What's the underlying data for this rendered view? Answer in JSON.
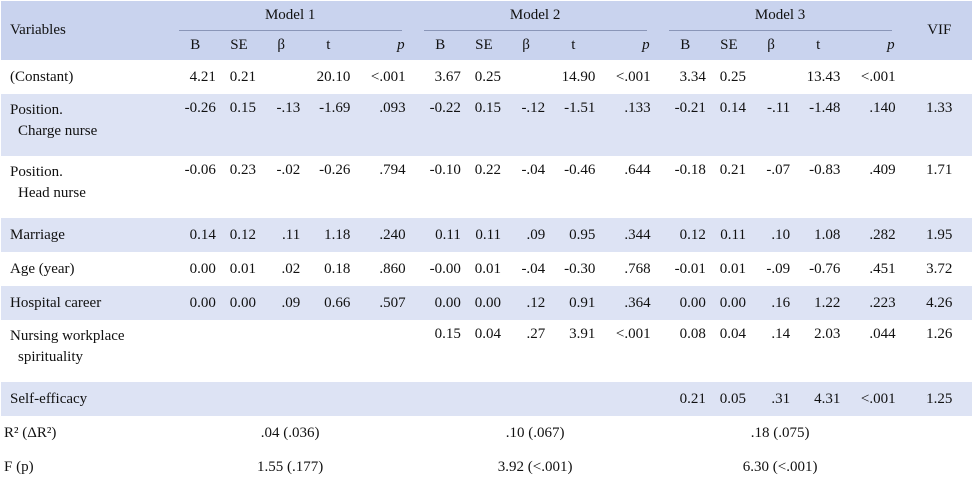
{
  "header": {
    "variables": "Variables",
    "models": [
      "Model 1",
      "Model 2",
      "Model 3"
    ],
    "sub": [
      "B",
      "SE",
      "β",
      "t",
      "p"
    ],
    "vif": "VIF"
  },
  "rows": [
    {
      "label": [
        "(Constant)"
      ],
      "m1": [
        "4.21",
        "0.21",
        "",
        "20.10",
        "<.001"
      ],
      "m2": [
        "3.67",
        "0.25",
        "",
        "14.90",
        "<.001"
      ],
      "m3": [
        "3.34",
        "0.25",
        "",
        "13.43",
        "<.001"
      ],
      "vif": ""
    },
    {
      "label": [
        "Position.",
        "Charge nurse"
      ],
      "m1": [
        "-0.26",
        "0.15",
        "-.13",
        "-1.69",
        ".093"
      ],
      "m2": [
        "-0.22",
        "0.15",
        "-.12",
        "-1.51",
        ".133"
      ],
      "m3": [
        "-0.21",
        "0.14",
        "-.11",
        "-1.48",
        ".140"
      ],
      "vif": "1.33"
    },
    {
      "label": [
        "Position.",
        "Head nurse"
      ],
      "m1": [
        "-0.06",
        "0.23",
        "-.02",
        "-0.26",
        ".794"
      ],
      "m2": [
        "-0.10",
        "0.22",
        "-.04",
        "-0.46",
        ".644"
      ],
      "m3": [
        "-0.18",
        "0.21",
        "-.07",
        "-0.83",
        ".409"
      ],
      "vif": "1.71"
    },
    {
      "label": [
        "Marriage"
      ],
      "m1": [
        "0.14",
        "0.12",
        ".11",
        "1.18",
        ".240"
      ],
      "m2": [
        "0.11",
        "0.11",
        ".09",
        "0.95",
        ".344"
      ],
      "m3": [
        "0.12",
        "0.11",
        ".10",
        "1.08",
        ".282"
      ],
      "vif": "1.95"
    },
    {
      "label": [
        "Age (year)"
      ],
      "m1": [
        "0.00",
        "0.01",
        ".02",
        "0.18",
        ".860"
      ],
      "m2": [
        "-0.00",
        "0.01",
        "-.04",
        "-0.30",
        ".768"
      ],
      "m3": [
        "-0.01",
        "0.01",
        "-.09",
        "-0.76",
        ".451"
      ],
      "vif": "3.72"
    },
    {
      "label": [
        "Hospital career"
      ],
      "m1": [
        "0.00",
        "0.00",
        ".09",
        "0.66",
        ".507"
      ],
      "m2": [
        "0.00",
        "0.00",
        ".12",
        "0.91",
        ".364"
      ],
      "m3": [
        "0.00",
        "0.00",
        ".16",
        "1.22",
        ".223"
      ],
      "vif": "4.26"
    },
    {
      "label": [
        "Nursing workplace",
        "spirituality"
      ],
      "m1": [
        "",
        "",
        "",
        "",
        ""
      ],
      "m2": [
        "0.15",
        "0.04",
        ".27",
        "3.91",
        "<.001"
      ],
      "m3": [
        "0.08",
        "0.04",
        ".14",
        "2.03",
        ".044"
      ],
      "vif": "1.26"
    },
    {
      "label": [
        "Self-efficacy"
      ],
      "m1": [
        "",
        "",
        "",
        "",
        ""
      ],
      "m2": [
        "",
        "",
        "",
        "",
        ""
      ],
      "m3": [
        "0.21",
        "0.05",
        ".31",
        "4.31",
        "<.001"
      ],
      "vif": "1.25"
    }
  ],
  "summary": {
    "r2": {
      "label": "R² (ΔR²)",
      "values": [
        ".04 (.036)",
        ".10 (.067)",
        ".18 (.075)"
      ]
    },
    "f": {
      "label": "F (p)",
      "values": [
        "1.55 (.177)",
        "3.92 (<.001)",
        "6.30 (<.001)"
      ]
    }
  }
}
